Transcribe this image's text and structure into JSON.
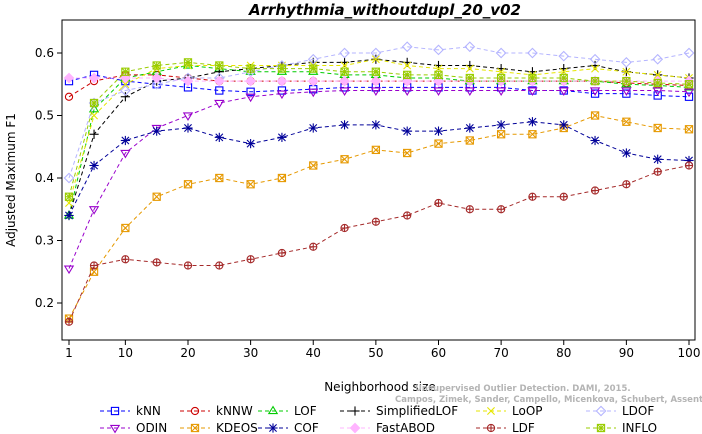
{
  "chart_data": {
    "type": "line",
    "title": "Arrhythmia_withoutdupl_20_v02",
    "xlabel": "Neighborhood size",
    "ylabel": "Adjusted Maximum F1",
    "xlim": [
      1,
      100
    ],
    "ylim": [
      0.17,
      0.65
    ],
    "x_ticks": [
      1,
      10,
      20,
      30,
      40,
      50,
      60,
      70,
      80,
      90,
      100
    ],
    "y_ticks": [
      0.2,
      0.3,
      0.4,
      0.5,
      0.6
    ],
    "grid": false,
    "legend_position": "bottom",
    "x": [
      1,
      5,
      10,
      15,
      20,
      25,
      30,
      35,
      40,
      45,
      50,
      55,
      60,
      65,
      70,
      75,
      80,
      85,
      90,
      95,
      100
    ],
    "series": [
      {
        "name": "kNN",
        "color": "#0000ff",
        "marker": "square",
        "line": "dashed",
        "values": [
          0.555,
          0.565,
          0.555,
          0.55,
          0.545,
          0.54,
          0.538,
          0.54,
          0.542,
          0.545,
          0.545,
          0.545,
          0.545,
          0.545,
          0.545,
          0.54,
          0.54,
          0.535,
          0.535,
          0.532,
          0.53
        ]
      },
      {
        "name": "kNNW",
        "color": "#cc0000",
        "marker": "circle",
        "line": "dashed",
        "values": [
          0.53,
          0.555,
          0.565,
          0.565,
          0.56,
          0.555,
          0.555,
          0.555,
          0.555,
          0.555,
          0.555,
          0.555,
          0.555,
          0.555,
          0.555,
          0.555,
          0.555,
          0.555,
          0.552,
          0.55,
          0.548
        ]
      },
      {
        "name": "LOF",
        "color": "#00cc00",
        "marker": "triangle-up",
        "line": "dashed",
        "values": [
          0.34,
          0.51,
          0.56,
          0.57,
          0.58,
          0.575,
          0.57,
          0.57,
          0.57,
          0.565,
          0.565,
          0.56,
          0.56,
          0.555,
          0.555,
          0.555,
          0.555,
          0.555,
          0.55,
          0.548,
          0.545
        ]
      },
      {
        "name": "SimplifiedLOF",
        "color": "#000000",
        "marker": "plus",
        "line": "dashed",
        "values": [
          0.34,
          0.47,
          0.53,
          0.555,
          0.56,
          0.57,
          0.575,
          0.58,
          0.585,
          0.585,
          0.59,
          0.585,
          0.58,
          0.58,
          0.575,
          0.57,
          0.575,
          0.58,
          0.57,
          0.565,
          0.56
        ]
      },
      {
        "name": "LoOP",
        "color": "#e6e600",
        "marker": "x",
        "line": "dashed",
        "values": [
          0.36,
          0.5,
          0.55,
          0.575,
          0.58,
          0.58,
          0.58,
          0.58,
          0.58,
          0.58,
          0.59,
          0.58,
          0.575,
          0.575,
          0.57,
          0.565,
          0.57,
          0.575,
          0.57,
          0.565,
          0.56
        ]
      },
      {
        "name": "LDOF",
        "color": "#b4b4ff",
        "marker": "diamond",
        "line": "dashed",
        "values": [
          0.4,
          0.52,
          0.54,
          0.55,
          0.56,
          0.56,
          0.57,
          0.58,
          0.59,
          0.6,
          0.6,
          0.61,
          0.605,
          0.61,
          0.6,
          0.6,
          0.595,
          0.59,
          0.585,
          0.59,
          0.6
        ]
      },
      {
        "name": "ODIN",
        "color": "#9900cc",
        "marker": "triangle-down",
        "line": "dashed",
        "values": [
          0.255,
          0.35,
          0.44,
          0.48,
          0.5,
          0.52,
          0.53,
          0.535,
          0.538,
          0.54,
          0.54,
          0.54,
          0.54,
          0.54,
          0.54,
          0.54,
          0.54,
          0.54,
          0.54,
          0.54,
          0.538
        ]
      },
      {
        "name": "KDEOS",
        "color": "#e69900",
        "marker": "square-x",
        "line": "dashed",
        "values": [
          0.175,
          0.25,
          0.32,
          0.37,
          0.39,
          0.4,
          0.39,
          0.4,
          0.42,
          0.43,
          0.445,
          0.44,
          0.455,
          0.46,
          0.47,
          0.47,
          0.48,
          0.5,
          0.49,
          0.48,
          0.478
        ]
      },
      {
        "name": "COF",
        "color": "#000099",
        "marker": "asterisk",
        "line": "dashed",
        "values": [
          0.34,
          0.42,
          0.46,
          0.475,
          0.48,
          0.465,
          0.455,
          0.465,
          0.48,
          0.485,
          0.485,
          0.475,
          0.475,
          0.48,
          0.485,
          0.49,
          0.485,
          0.46,
          0.44,
          0.43,
          0.428
        ]
      },
      {
        "name": "FastABOD",
        "color": "#ffb4ff",
        "marker": "diamond-filled",
        "line": "dashed",
        "values": [
          0.56,
          0.56,
          0.56,
          0.56,
          0.555,
          0.555,
          0.555,
          0.555,
          0.555,
          0.555,
          0.555,
          0.555,
          0.555,
          0.555,
          0.555,
          0.555,
          0.555,
          0.555,
          0.555,
          0.555,
          0.555
        ]
      },
      {
        "name": "LDF",
        "color": "#a52a2a",
        "marker": "circle-plus",
        "line": "dashed",
        "values": [
          0.17,
          0.26,
          0.27,
          0.265,
          0.26,
          0.26,
          0.27,
          0.28,
          0.29,
          0.32,
          0.33,
          0.34,
          0.36,
          0.35,
          0.35,
          0.37,
          0.37,
          0.38,
          0.39,
          0.41,
          0.42
        ]
      },
      {
        "name": "INFLO",
        "color": "#99cc00",
        "marker": "asterisk-box",
        "line": "dashed",
        "values": [
          0.37,
          0.52,
          0.57,
          0.58,
          0.585,
          0.58,
          0.575,
          0.575,
          0.575,
          0.57,
          0.57,
          0.565,
          0.565,
          0.56,
          0.56,
          0.56,
          0.56,
          0.555,
          0.555,
          0.552,
          0.55
        ]
      }
    ]
  },
  "watermark": {
    "line1": "Unsupervised Outlier Detection. DAMI, 2015.",
    "line2": "Campos, Zimek, Sander, Campello, Micenkova, Schubert, Assent, Houle"
  }
}
